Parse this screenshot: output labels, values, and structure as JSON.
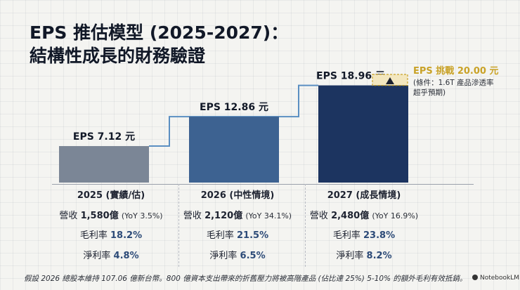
{
  "title_line1": "EPS 推估模型 (2025-2027)：",
  "title_line2": "結構性成長的財務驗證",
  "chart_data": {
    "type": "bar",
    "categories": [
      "2025 (實績/估)",
      "2026 (中性情境)",
      "2027 (成長情境)"
    ],
    "values": [
      7.12,
      12.86,
      18.96
    ],
    "value_labels": [
      "EPS 7.12 元",
      "EPS 12.86 元",
      "EPS 18.96 元"
    ],
    "colors": [
      "#7b8696",
      "#3d6291",
      "#1c3460"
    ],
    "ylim": [
      0,
      20
    ],
    "target": {
      "value": 20.0,
      "label": "EPS 挑戰 20.00 元",
      "color": "#c9a227"
    }
  },
  "target_note": [
    "(條件：1.6T 產品滲透率",
    "超乎預期)"
  ],
  "table": {
    "rows": [
      {
        "revenue_label": "營收",
        "revenue": "1,580億",
        "yoy": "(YoY 3.5%)",
        "gm_label": "毛利率",
        "gm": "18.2%",
        "nm_label": "淨利率",
        "nm": "4.8%"
      },
      {
        "revenue_label": "營收",
        "revenue": "2,120億",
        "yoy": "(YoY 34.1%)",
        "gm_label": "毛利率",
        "gm": "21.5%",
        "nm_label": "淨利率",
        "nm": "6.5%"
      },
      {
        "revenue_label": "營收",
        "revenue": "2,480億",
        "yoy": "(YoY 16.9%)",
        "gm_label": "毛利率",
        "gm": "23.8%",
        "nm_label": "淨利率",
        "nm": "8.2%"
      }
    ]
  },
  "footnote": "假設 2026 總股本維持 107.06 億新台幣。800 億資本支出帶來的折舊壓力將被高階產品 (佔比達 25%) 5-10% 的額外毛利有效抵銷。",
  "brand": "NotebookLM"
}
